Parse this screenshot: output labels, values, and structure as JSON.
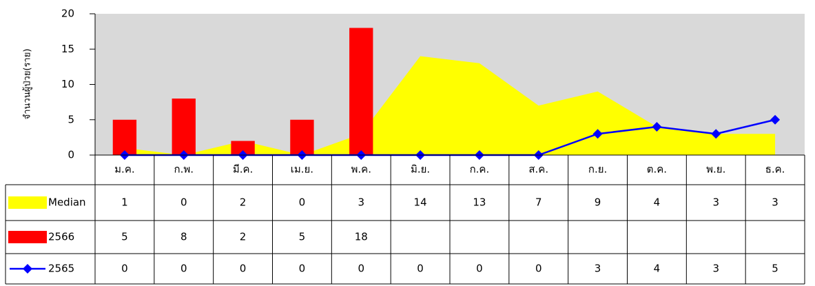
{
  "chart_data": {
    "type": "combo",
    "y_axis_label": "จำนวนผู้ป่วย(ราย)",
    "categories": [
      "ม.ค.",
      "ก.พ.",
      "มี.ค.",
      "เม.ย.",
      "พ.ค.",
      "มิ.ย.",
      "ก.ค.",
      "ส.ค.",
      "ก.ย.",
      "ต.ค.",
      "พ.ย.",
      "ธ.ค."
    ],
    "series": [
      {
        "name": "Median",
        "type": "area",
        "color": "#ffff00",
        "values": [
          1,
          0,
          2,
          0,
          3,
          14,
          13,
          7,
          9,
          4,
          3,
          3
        ]
      },
      {
        "name": "2566",
        "type": "bar",
        "color": "#ff0000",
        "values": [
          5,
          8,
          2,
          5,
          18,
          null,
          null,
          null,
          null,
          null,
          null,
          null
        ]
      },
      {
        "name": "2565",
        "type": "line",
        "color": "#0000ff",
        "values": [
          0,
          0,
          0,
          0,
          0,
          0,
          0,
          0,
          3,
          4,
          3,
          5
        ]
      }
    ],
    "ylim": [
      0,
      20
    ],
    "yticks": [
      0,
      5,
      10,
      15,
      20
    ],
    "plot_background": "#d9d9d9"
  }
}
